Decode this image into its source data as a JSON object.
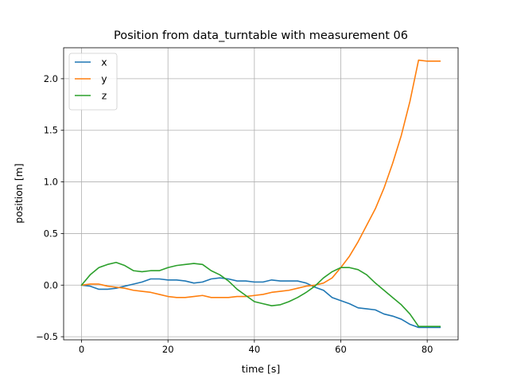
{
  "chart_data": {
    "type": "line",
    "title": "Position from data_turntable with measurement 06",
    "xlabel": "time [s]",
    "ylabel": "position [m]",
    "xlim": [
      -4.15,
      87.15
    ],
    "ylim": [
      -0.53,
      2.3
    ],
    "xticks": [
      0,
      20,
      40,
      60,
      80
    ],
    "yticks": [
      -0.5,
      0.0,
      0.5,
      1.0,
      1.5,
      2.0
    ],
    "grid": true,
    "legend": "upper-left",
    "series": [
      {
        "name": "x",
        "color": "#1f77b4",
        "points": [
          [
            0,
            0
          ],
          [
            2,
            -0.01
          ],
          [
            4,
            -0.04
          ],
          [
            6,
            -0.04
          ],
          [
            8,
            -0.03
          ],
          [
            10,
            -0.01
          ],
          [
            12,
            0.01
          ],
          [
            14,
            0.03
          ],
          [
            16,
            0.06
          ],
          [
            18,
            0.06
          ],
          [
            20,
            0.05
          ],
          [
            22,
            0.05
          ],
          [
            24,
            0.04
          ],
          [
            26,
            0.02
          ],
          [
            28,
            0.03
          ],
          [
            30,
            0.06
          ],
          [
            32,
            0.07
          ],
          [
            34,
            0.06
          ],
          [
            36,
            0.04
          ],
          [
            38,
            0.04
          ],
          [
            40,
            0.03
          ],
          [
            42,
            0.03
          ],
          [
            44,
            0.05
          ],
          [
            46,
            0.04
          ],
          [
            48,
            0.04
          ],
          [
            50,
            0.04
          ],
          [
            52,
            0.02
          ],
          [
            54,
            -0.02
          ],
          [
            56,
            -0.05
          ],
          [
            58,
            -0.12
          ],
          [
            60,
            -0.15
          ],
          [
            62,
            -0.18
          ],
          [
            64,
            -0.22
          ],
          [
            66,
            -0.23
          ],
          [
            68,
            -0.24
          ],
          [
            70,
            -0.28
          ],
          [
            72,
            -0.3
          ],
          [
            74,
            -0.33
          ],
          [
            76,
            -0.38
          ],
          [
            78,
            -0.41
          ],
          [
            80,
            -0.41
          ],
          [
            83,
            -0.41
          ]
        ]
      },
      {
        "name": "y",
        "color": "#ff7f0e",
        "points": [
          [
            0,
            0
          ],
          [
            2,
            0.01
          ],
          [
            4,
            0.01
          ],
          [
            6,
            -0.01
          ],
          [
            8,
            -0.02
          ],
          [
            10,
            -0.03
          ],
          [
            12,
            -0.05
          ],
          [
            14,
            -0.06
          ],
          [
            16,
            -0.07
          ],
          [
            18,
            -0.09
          ],
          [
            20,
            -0.11
          ],
          [
            22,
            -0.12
          ],
          [
            24,
            -0.12
          ],
          [
            26,
            -0.11
          ],
          [
            28,
            -0.1
          ],
          [
            30,
            -0.12
          ],
          [
            32,
            -0.12
          ],
          [
            34,
            -0.12
          ],
          [
            36,
            -0.11
          ],
          [
            38,
            -0.11
          ],
          [
            40,
            -0.1
          ],
          [
            42,
            -0.09
          ],
          [
            44,
            -0.07
          ],
          [
            46,
            -0.06
          ],
          [
            48,
            -0.05
          ],
          [
            50,
            -0.03
          ],
          [
            52,
            -0.01
          ],
          [
            54,
            0.0
          ],
          [
            56,
            0.02
          ],
          [
            58,
            0.07
          ],
          [
            60,
            0.17
          ],
          [
            62,
            0.28
          ],
          [
            64,
            0.42
          ],
          [
            66,
            0.58
          ],
          [
            68,
            0.74
          ],
          [
            70,
            0.94
          ],
          [
            72,
            1.18
          ],
          [
            74,
            1.45
          ],
          [
            76,
            1.78
          ],
          [
            77,
            1.98
          ],
          [
            78,
            2.18
          ],
          [
            80,
            2.17
          ],
          [
            83,
            2.17
          ]
        ]
      },
      {
        "name": "z",
        "color": "#2ca02c",
        "points": [
          [
            0,
            0
          ],
          [
            2,
            0.1
          ],
          [
            4,
            0.17
          ],
          [
            6,
            0.2
          ],
          [
            8,
            0.22
          ],
          [
            10,
            0.19
          ],
          [
            12,
            0.14
          ],
          [
            14,
            0.13
          ],
          [
            16,
            0.14
          ],
          [
            18,
            0.14
          ],
          [
            20,
            0.17
          ],
          [
            22,
            0.19
          ],
          [
            24,
            0.2
          ],
          [
            26,
            0.21
          ],
          [
            28,
            0.2
          ],
          [
            30,
            0.14
          ],
          [
            32,
            0.1
          ],
          [
            34,
            0.04
          ],
          [
            36,
            -0.04
          ],
          [
            38,
            -0.1
          ],
          [
            40,
            -0.16
          ],
          [
            42,
            -0.18
          ],
          [
            44,
            -0.2
          ],
          [
            46,
            -0.19
          ],
          [
            48,
            -0.16
          ],
          [
            50,
            -0.12
          ],
          [
            52,
            -0.07
          ],
          [
            54,
            -0.01
          ],
          [
            56,
            0.07
          ],
          [
            58,
            0.13
          ],
          [
            60,
            0.17
          ],
          [
            62,
            0.17
          ],
          [
            64,
            0.15
          ],
          [
            66,
            0.1
          ],
          [
            68,
            0.02
          ],
          [
            70,
            -0.05
          ],
          [
            72,
            -0.12
          ],
          [
            74,
            -0.19
          ],
          [
            76,
            -0.28
          ],
          [
            78,
            -0.4
          ],
          [
            80,
            -0.4
          ],
          [
            83,
            -0.4
          ]
        ]
      }
    ]
  }
}
